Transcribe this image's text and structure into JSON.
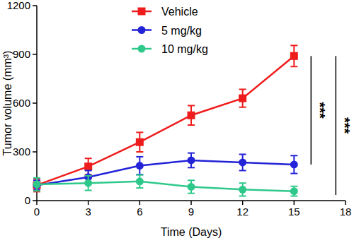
{
  "chart_data": {
    "type": "line",
    "x_label": "Time (Days)",
    "y_label": "Tumor volume (mm³)",
    "x": [
      0,
      3,
      6,
      9,
      12,
      15
    ],
    "xlim": [
      0,
      18
    ],
    "xticks": [
      0,
      3,
      6,
      9,
      12,
      15,
      18
    ],
    "ylim": [
      0,
      1200
    ],
    "yticks": [
      0,
      300,
      600,
      900,
      1200
    ],
    "grid": false,
    "legend": "top",
    "series": [
      {
        "name": "Vehicle",
        "color": "#ee1c1c",
        "marker": "square",
        "line_style": "solid",
        "values": [
          95,
          210,
          360,
          525,
          630,
          890
        ],
        "errors": [
          40,
          50,
          60,
          60,
          55,
          65
        ]
      },
      {
        "name": "5 mg/kg",
        "color": "#2323d8",
        "marker": "circle",
        "line_style": "solid",
        "values": [
          95,
          145,
          215,
          248,
          235,
          222
        ],
        "errors": [
          30,
          40,
          55,
          45,
          50,
          55
        ]
      },
      {
        "name": "10 mg/kg",
        "color": "#2ec98a",
        "marker": "circle",
        "line_style": "solid",
        "values": [
          100,
          108,
          118,
          85,
          68,
          58
        ],
        "errors": [
          40,
          45,
          40,
          40,
          40,
          30
        ]
      }
    ],
    "annotations": [
      {
        "text": "***"
      },
      {
        "text": "***"
      }
    ]
  }
}
